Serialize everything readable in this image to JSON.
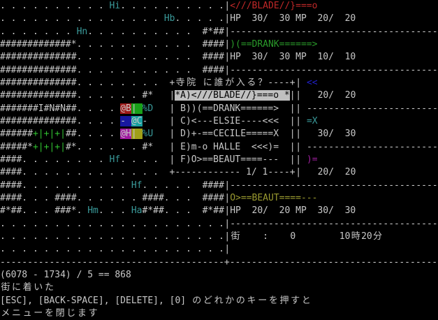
{
  "colors": {
    "fg": "#c8c8c8",
    "teal": "#3a9a9a",
    "red": "#c02828",
    "green": "#2a9a2a",
    "lime": "#30c030",
    "blue": "#2020c8",
    "purple": "#a020a0",
    "olive": "#9a9a30",
    "bg_red": "#a01818",
    "bg_green": "#18a018",
    "bg_blue": "#1818a0",
    "bg_teal": "#18a0a0",
    "bg_purple": "#a018a0",
    "bg_olive": "#a0a018",
    "highlight": "#c0c0c0"
  },
  "map_rows": [
    [
      {
        "t": ". . . . . . . . . . "
      },
      {
        "t": "Hi",
        "c": "teal"
      },
      {
        "t": ". . . . . . . . . ."
      }
    ],
    [
      {
        "t": ". . . . . . . . . . . . . . . "
      },
      {
        "t": "Hb",
        "c": "teal"
      },
      {
        "t": ". . . . ."
      }
    ],
    [
      {
        "t": ". . . . . . . "
      },
      {
        "t": "Hn",
        "c": "teal"
      },
      {
        "t": ". . . . . . . . . .  #*##"
      }
    ],
    [
      {
        "t": "#############*. . . . . . . . . . .  ####"
      }
    ],
    [
      {
        "t": "##############. . . . . . . . . . .  ####"
      }
    ],
    [
      {
        "t": "##############. . . . . . . . . . .  ####"
      }
    ],
    [
      {
        "t": "##############. . . . . . . . "
      }
    ],
    [
      {
        "t": "##############. . . . . . #*"
      }
    ],
    [
      {
        "t": "#######I#N#N##. . . . "
      },
      {
        "t": "@B",
        "bg": "bg_red"
      },
      {
        "t": "| ",
        "bg": "bg_green"
      },
      {
        "t": "%D",
        "c": "teal"
      }
    ],
    [
      {
        "t": "##############. . . . "
      },
      {
        "t": "- ",
        "bg": "bg_blue"
      },
      {
        "t": "@C",
        "bg": "bg_teal"
      },
      {
        "t": "-"
      }
    ],
    [
      {
        "t": "######"
      },
      {
        "t": "+|+|+|",
        "c": "lime"
      },
      {
        "t": "##. . . . "
      },
      {
        "t": "@H",
        "bg": "bg_purple"
      },
      {
        "t": "| ",
        "bg": "bg_olive"
      },
      {
        "t": "%U",
        "c": "teal"
      }
    ],
    [
      {
        "t": "#####*"
      },
      {
        "t": "+|+|+|",
        "c": "lime"
      },
      {
        "t": "#*. . . . . . #*"
      }
    ],
    [
      {
        "t": "####. . . . . . . . "
      },
      {
        "t": "Hf",
        "c": "teal"
      },
      {
        "t": ". . . . "
      }
    ],
    [
      {
        "t": "####. . . . . . . . . . . . . "
      }
    ],
    [
      {
        "t": "####. . . . . . . . . . "
      },
      {
        "t": "Hf",
        "c": "teal"
      },
      {
        "t": ". . . . .  ####"
      }
    ],
    [
      {
        "t": "####. . . ####. . . . . . ####. . .  ####"
      }
    ],
    [
      {
        "t": "#*##. . . ###*. "
      },
      {
        "t": "Hm",
        "c": "teal"
      },
      {
        "t": ". . . "
      },
      {
        "t": "Ha",
        "c": "teal"
      },
      {
        "t": "#*##. . .  #*##"
      }
    ],
    [
      {
        "t": ". . . . . . . . . . . . . . . . . . . . ."
      }
    ],
    [
      {
        "t": ". . . . . . . . . . . . . . . . . . . . ."
      }
    ],
    [
      {
        "t": ". . . . . . . . . . . . . . . . . . . . ."
      }
    ]
  ],
  "status_rows": [
    [
      {
        "t": "|"
      },
      {
        "t": "<///BLADE//}===o",
        "c": "red"
      }
    ],
    [
      {
        "t": "|HP  30/  30 MP  20/  20"
      }
    ],
    [
      {
        "t": "|--------------------------------------"
      }
    ],
    [
      {
        "t": "|"
      },
      {
        "t": ")(==DRANK======>",
        "c": "green"
      }
    ],
    [
      {
        "t": "|HP  30/  30 MP  10/  10"
      }
    ],
    [
      {
        "t": "|--------------------------------------"
      }
    ],
    [
      {
        "t": "|              "
      },
      {
        "t": "<<",
        "c": "blue"
      }
    ],
    [
      {
        "t": "|                20/  20"
      }
    ],
    [
      {
        "t": "|              ------------------------"
      }
    ],
    [
      {
        "t": "|              "
      },
      {
        "t": "=X",
        "c": "teal"
      }
    ],
    [
      {
        "t": "|                30/  30"
      }
    ],
    [
      {
        "t": "|              ------------------------"
      }
    ],
    [
      {
        "t": "|              "
      },
      {
        "t": ")=",
        "c": "purple"
      }
    ],
    [
      {
        "t": "|                20/  20"
      }
    ],
    [
      {
        "t": "|--------------------------------------"
      }
    ],
    [
      {
        "t": "|"
      },
      {
        "t": "O>==BEAUT====---",
        "c": "olive"
      }
    ],
    [
      {
        "t": "|HP  20/  20 MP  30/  30"
      }
    ],
    [
      {
        "t": "|--------------------------------------"
      }
    ],
    [
      {
        "t": "|街    :    0        10時20分"
      }
    ],
    [
      {
        "t": "|"
      }
    ]
  ],
  "divider": "-----------------------------------------+--------------------------------------",
  "messages": [
    "(6078 - 1734) / 5 == 868",
    "街に着いた",
    "[ESC], [BACK-SPACE], [DELETE], [0] のどれかのキーを押すと",
    "メニューを閉じます"
  ],
  "popup": {
    "title": "寺院 に誰が入る？",
    "items": [
      {
        "label": "*A)<///BLADE//}===o *",
        "selected": true
      },
      {
        "label": " B))(==DRANK======>  ",
        "selected": false
      },
      {
        "label": " C)<---ELSIE----<<<  ",
        "selected": false
      },
      {
        "label": " D)+-==CECILE=====X  ",
        "selected": false
      },
      {
        "label": " E)m-o HALLE  <<<)=  ",
        "selected": false
      },
      {
        "label": " F)O>==BEAUT====---  ",
        "selected": false
      }
    ],
    "page": "1/ 1"
  }
}
